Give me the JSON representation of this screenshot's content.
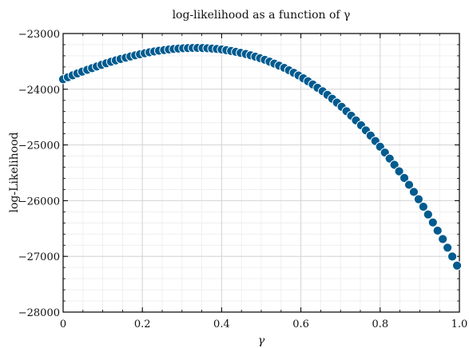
{
  "chart_data": {
    "type": "scatter",
    "title": "log-likelihood as a function of γ",
    "xlabel": "γ",
    "ylabel": "log-Likelihood",
    "xlim": [
      0,
      1
    ],
    "ylim": [
      -28000,
      -23000
    ],
    "xticks": [
      0,
      0.2,
      0.4,
      0.6,
      0.8,
      1.0
    ],
    "xtick_labels": [
      "0",
      "0.2",
      "0.4",
      "0.6",
      "0.8",
      "1.0"
    ],
    "yticks": [
      -28000,
      -27000,
      -26000,
      -25000,
      -24000,
      -23000
    ],
    "ytick_labels": [
      "−28000",
      "−27000",
      "−26000",
      "−25000",
      "−24000",
      "−23000"
    ],
    "grid": true,
    "minor_grid": true,
    "marker_color": "#005b8f",
    "marker_edge_color": "#ffffff",
    "x": [
      0.0,
      0.012,
      0.024,
      0.036,
      0.048,
      0.061,
      0.073,
      0.085,
      0.097,
      0.109,
      0.121,
      0.133,
      0.145,
      0.158,
      0.17,
      0.182,
      0.194,
      0.206,
      0.218,
      0.23,
      0.242,
      0.255,
      0.267,
      0.279,
      0.291,
      0.303,
      0.315,
      0.327,
      0.339,
      0.352,
      0.364,
      0.376,
      0.388,
      0.4,
      0.412,
      0.424,
      0.436,
      0.448,
      0.461,
      0.473,
      0.485,
      0.497,
      0.509,
      0.521,
      0.533,
      0.545,
      0.558,
      0.57,
      0.582,
      0.594,
      0.606,
      0.618,
      0.63,
      0.642,
      0.655,
      0.667,
      0.679,
      0.691,
      0.703,
      0.715,
      0.727,
      0.739,
      0.752,
      0.764,
      0.776,
      0.788,
      0.8,
      0.812,
      0.824,
      0.836,
      0.848,
      0.861,
      0.873,
      0.885,
      0.897,
      0.909,
      0.921,
      0.933,
      0.945,
      0.958,
      0.97,
      0.982,
      0.994
    ],
    "y": [
      -23820,
      -23785,
      -23750,
      -23716,
      -23684,
      -23652,
      -23621,
      -23591,
      -23562,
      -23534,
      -23507,
      -23482,
      -23457,
      -23434,
      -23412,
      -23391,
      -23372,
      -23354,
      -23337,
      -23322,
      -23309,
      -23297,
      -23286,
      -23277,
      -23270,
      -23264,
      -23261,
      -23259,
      -23259,
      -23260,
      -23264,
      -23270,
      -23277,
      -23287,
      -23299,
      -23313,
      -23329,
      -23347,
      -23367,
      -23390,
      -23415,
      -23443,
      -23472,
      -23505,
      -23540,
      -23577,
      -23617,
      -23660,
      -23705,
      -23753,
      -23804,
      -23858,
      -23914,
      -23974,
      -24036,
      -24101,
      -24170,
      -24241,
      -24316,
      -24394,
      -24475,
      -24559,
      -24647,
      -24738,
      -24832,
      -24930,
      -25032,
      -25137,
      -25245,
      -25357,
      -25473,
      -25593,
      -25716,
      -25843,
      -25974,
      -26109,
      -26248,
      -26391,
      -26538,
      -26689,
      -26844,
      -27003,
      -27166
    ]
  }
}
